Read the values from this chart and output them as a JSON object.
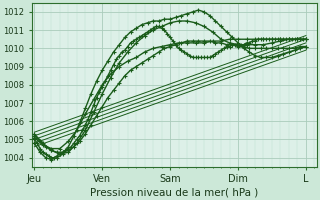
{
  "bg_color": "#cce8d8",
  "plot_bg_color": "#ddf0e8",
  "grid_major_color": "#aaccbb",
  "grid_minor_color": "#bbddcc",
  "line_color": "#1a5c1a",
  "xlabel": "Pression niveau de la mer( hPa )",
  "ylim": [
    1003.5,
    1012.5
  ],
  "yticks": [
    1004,
    1005,
    1006,
    1007,
    1008,
    1009,
    1010,
    1011,
    1012
  ],
  "x_days": [
    "Jeu",
    "Ven",
    "Sam",
    "Dim",
    "L"
  ],
  "x_day_positions": [
    0,
    24,
    48,
    72,
    96
  ],
  "xlim": [
    -1,
    100
  ],
  "lines": [
    {
      "x": [
        0,
        1,
        2,
        3,
        4,
        5,
        6,
        7,
        8,
        9,
        10,
        11,
        12,
        13,
        14,
        15,
        16,
        17,
        18,
        19,
        20,
        21,
        22,
        23,
        24,
        25,
        26,
        27,
        28,
        29,
        30,
        31,
        32,
        33,
        34,
        35,
        36,
        37,
        38,
        39,
        40,
        41,
        42,
        43,
        44,
        45,
        46,
        47,
        48,
        49,
        50,
        51,
        52,
        53,
        54,
        55,
        56,
        57,
        58,
        59,
        60,
        61,
        62,
        63,
        64,
        65,
        66,
        67,
        68,
        69,
        70,
        71,
        72,
        73,
        74,
        75,
        76,
        77,
        78,
        79,
        80,
        81,
        82,
        83,
        84,
        85,
        86,
        87,
        88,
        89,
        90,
        91,
        92,
        93,
        94,
        95,
        96
      ],
      "y": [
        1005.0,
        1004.8,
        1004.5,
        1004.3,
        1004.2,
        1004.1,
        1004.0,
        1004.0,
        1004.1,
        1004.2,
        1004.3,
        1004.4,
        1004.5,
        1004.6,
        1004.8,
        1005.0,
        1005.2,
        1005.5,
        1005.8,
        1006.1,
        1006.5,
        1006.9,
        1007.3,
        1007.6,
        1007.9,
        1008.2,
        1008.5,
        1008.8,
        1009.1,
        1009.4,
        1009.6,
        1009.8,
        1009.9,
        1010.1,
        1010.3,
        1010.4,
        1010.5,
        1010.6,
        1010.7,
        1010.8,
        1010.9,
        1011.0,
        1011.1,
        1011.2,
        1011.2,
        1011.1,
        1011.0,
        1010.8,
        1010.6,
        1010.4,
        1010.2,
        1010.0,
        1009.9,
        1009.8,
        1009.7,
        1009.6,
        1009.5,
        1009.5,
        1009.5,
        1009.5,
        1009.5,
        1009.5,
        1009.5,
        1009.6,
        1009.7,
        1009.8,
        1009.9,
        1010.0,
        1010.1,
        1010.1,
        1010.2,
        1010.2,
        1010.2,
        1010.2,
        1010.2,
        1010.3,
        1010.3,
        1010.4,
        1010.4,
        1010.5,
        1010.5,
        1010.5,
        1010.5,
        1010.5,
        1010.5,
        1010.5,
        1010.5,
        1010.5,
        1010.5,
        1010.5,
        1010.5,
        1010.5,
        1010.5,
        1010.5,
        1010.5,
        1010.5,
        1010.5
      ],
      "marker": "+",
      "markersize": 2.5,
      "linewidth": 1.0
    },
    {
      "x": [
        0,
        2,
        4,
        6,
        8,
        10,
        12,
        14,
        16,
        18,
        20,
        22,
        24,
        26,
        28,
        30,
        32,
        34,
        36,
        38,
        40,
        42,
        44,
        46,
        48,
        50,
        52,
        54,
        56,
        58,
        60,
        62,
        64,
        66,
        68,
        70,
        72,
        74,
        76,
        78,
        80,
        82,
        84,
        86,
        88,
        90,
        92,
        94,
        96
      ],
      "y": [
        1004.8,
        1004.3,
        1004.0,
        1003.9,
        1004.0,
        1004.2,
        1004.6,
        1005.2,
        1005.9,
        1006.7,
        1007.5,
        1008.2,
        1008.8,
        1009.3,
        1009.8,
        1010.2,
        1010.6,
        1010.9,
        1011.1,
        1011.3,
        1011.4,
        1011.5,
        1011.5,
        1011.6,
        1011.6,
        1011.7,
        1011.8,
        1011.9,
        1012.0,
        1012.1,
        1012.0,
        1011.8,
        1011.5,
        1011.2,
        1010.9,
        1010.6,
        1010.3,
        1010.0,
        1009.8,
        1009.6,
        1009.5,
        1009.5,
        1009.5,
        1009.6,
        1009.7,
        1009.8,
        1009.9,
        1010.0,
        1010.1
      ],
      "marker": "+",
      "markersize": 2.5,
      "linewidth": 1.0
    },
    {
      "x": [
        0,
        2,
        4,
        6,
        8,
        10,
        12,
        14,
        16,
        18,
        20,
        22,
        24,
        26,
        28,
        30,
        32,
        34,
        36,
        38,
        40,
        42,
        44,
        46,
        48,
        50,
        52,
        54,
        56,
        58,
        60,
        62,
        64,
        66,
        68,
        70,
        72,
        74,
        76,
        78,
        80,
        82,
        84,
        86,
        88,
        90,
        92,
        94,
        96
      ],
      "y": [
        1005.2,
        1004.9,
        1004.6,
        1004.4,
        1004.3,
        1004.3,
        1004.4,
        1004.6,
        1004.9,
        1005.3,
        1005.8,
        1006.3,
        1006.8,
        1007.3,
        1007.7,
        1008.1,
        1008.5,
        1008.8,
        1009.0,
        1009.2,
        1009.4,
        1009.6,
        1009.8,
        1010.0,
        1010.1,
        1010.2,
        1010.3,
        1010.4,
        1010.4,
        1010.4,
        1010.4,
        1010.4,
        1010.3,
        1010.3,
        1010.2,
        1010.2,
        1010.1,
        1010.1,
        1010.0,
        1010.0,
        1010.0,
        1010.0,
        1010.0,
        1010.0,
        1010.0,
        1010.0,
        1010.0,
        1010.1,
        1010.1
      ],
      "marker": "+",
      "markersize": 2.5,
      "linewidth": 1.0
    },
    {
      "x": [
        0,
        3,
        6,
        9,
        12,
        15,
        18,
        21,
        24,
        27,
        30,
        33,
        36,
        39,
        42,
        45,
        48,
        51,
        54,
        57,
        60,
        63,
        66,
        69,
        72,
        75,
        78,
        81,
        84,
        87,
        90,
        93,
        96
      ],
      "y": [
        1005.1,
        1004.7,
        1004.5,
        1004.5,
        1004.9,
        1005.5,
        1006.4,
        1007.2,
        1008.0,
        1008.6,
        1009.0,
        1009.3,
        1009.5,
        1009.8,
        1010.0,
        1010.1,
        1010.2,
        1010.3,
        1010.3,
        1010.3,
        1010.3,
        1010.4,
        1010.4,
        1010.5,
        1010.5,
        1010.5,
        1010.5,
        1010.5,
        1010.5,
        1010.5,
        1010.5,
        1010.5,
        1010.5
      ],
      "marker": "+",
      "markersize": 2.5,
      "linewidth": 1.0
    },
    {
      "x": [
        0,
        3,
        6,
        9,
        12,
        15,
        18,
        21,
        24,
        27,
        30,
        33,
        36,
        39,
        42,
        45,
        48,
        51,
        54,
        57,
        60,
        63,
        66,
        69,
        72,
        75,
        78,
        81,
        84,
        87,
        90,
        93,
        96
      ],
      "y": [
        1005.3,
        1004.8,
        1004.4,
        1004.2,
        1004.3,
        1004.8,
        1005.5,
        1006.5,
        1007.5,
        1008.4,
        1009.2,
        1009.8,
        1010.3,
        1010.7,
        1011.0,
        1011.2,
        1011.4,
        1011.5,
        1011.5,
        1011.4,
        1011.2,
        1010.9,
        1010.5,
        1010.3,
        1010.2,
        1010.2,
        1010.2,
        1010.2,
        1010.3,
        1010.4,
        1010.5,
        1010.5,
        1010.5
      ],
      "marker": "+",
      "markersize": 2.5,
      "linewidth": 1.0
    },
    {
      "x": [
        0,
        96
      ],
      "y": [
        1004.8,
        1010.1
      ],
      "marker": null,
      "markersize": 0,
      "linewidth": 0.7
    },
    {
      "x": [
        0,
        96
      ],
      "y": [
        1005.0,
        1010.3
      ],
      "marker": null,
      "markersize": 0,
      "linewidth": 0.7
    },
    {
      "x": [
        0,
        96
      ],
      "y": [
        1005.2,
        1010.5
      ],
      "marker": null,
      "markersize": 0,
      "linewidth": 0.7
    },
    {
      "x": [
        0,
        96
      ],
      "y": [
        1004.6,
        1009.9
      ],
      "marker": null,
      "markersize": 0,
      "linewidth": 0.7
    },
    {
      "x": [
        0,
        96
      ],
      "y": [
        1005.4,
        1010.7
      ],
      "marker": null,
      "markersize": 0,
      "linewidth": 0.7
    }
  ]
}
